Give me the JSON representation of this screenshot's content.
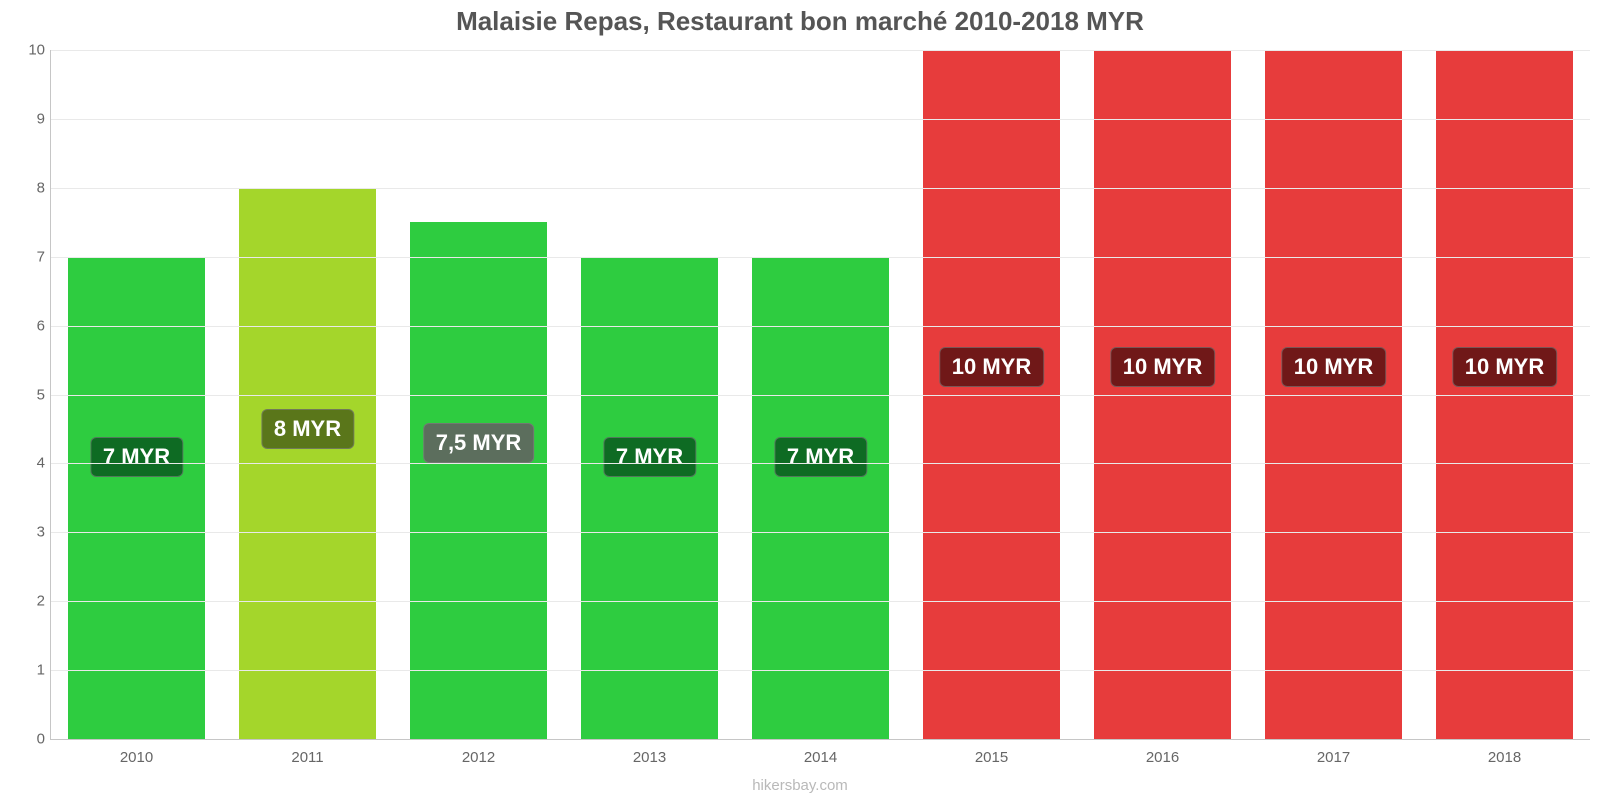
{
  "chart": {
    "type": "bar",
    "title": "Malaisie Repas, Restaurant bon marché 2010-2018 MYR",
    "title_color": "#555555",
    "title_fontsize": 26,
    "background_color": "#ffffff",
    "axis_color": "#c6c6c6",
    "grid_color": "#e9e9e9",
    "tick_color": "#666666",
    "tick_fontsize": 15,
    "credit": "hikersbay.com",
    "credit_color": "#b9b9b9",
    "ylim": [
      0,
      10
    ],
    "ytick_step": 1,
    "yticks": [
      "0",
      "1",
      "2",
      "3",
      "4",
      "5",
      "6",
      "7",
      "8",
      "9",
      "10"
    ],
    "bar_width_pct": 80,
    "bar_label_fontsize": 22,
    "bar_label_text_color": "#ffffff",
    "bar_label_y_value": 4.1,
    "bar_label_y_value_high": 5.4,
    "bars": [
      {
        "category": "2010",
        "value": 7,
        "label": "7 MYR",
        "bar_color": "#2ecc40",
        "label_bg": "#0e6b23",
        "label_y": 4.1
      },
      {
        "category": "2011",
        "value": 8,
        "label": "8 MYR",
        "bar_color": "#a4d62b",
        "label_bg": "#5a761a",
        "label_y": 4.5
      },
      {
        "category": "2012",
        "value": 7.5,
        "label": "7,5 MYR",
        "bar_color": "#2ecc40",
        "label_bg": "#5c6e5d",
        "label_y": 4.3
      },
      {
        "category": "2013",
        "value": 7,
        "label": "7 MYR",
        "bar_color": "#2ecc40",
        "label_bg": "#0e6b23",
        "label_y": 4.1
      },
      {
        "category": "2014",
        "value": 7,
        "label": "7 MYR",
        "bar_color": "#2ecc40",
        "label_bg": "#0e6b23",
        "label_y": 4.1
      },
      {
        "category": "2015",
        "value": 10,
        "label": "10 MYR",
        "bar_color": "#e73c3c",
        "label_bg": "#701818",
        "label_y": 5.4
      },
      {
        "category": "2016",
        "value": 10,
        "label": "10 MYR",
        "bar_color": "#e73c3c",
        "label_bg": "#701818",
        "label_y": 5.4
      },
      {
        "category": "2017",
        "value": 10,
        "label": "10 MYR",
        "bar_color": "#e73c3c",
        "label_bg": "#701818",
        "label_y": 5.4
      },
      {
        "category": "2018",
        "value": 10,
        "label": "10 MYR",
        "bar_color": "#e73c3c",
        "label_bg": "#701818",
        "label_y": 5.4
      }
    ]
  }
}
